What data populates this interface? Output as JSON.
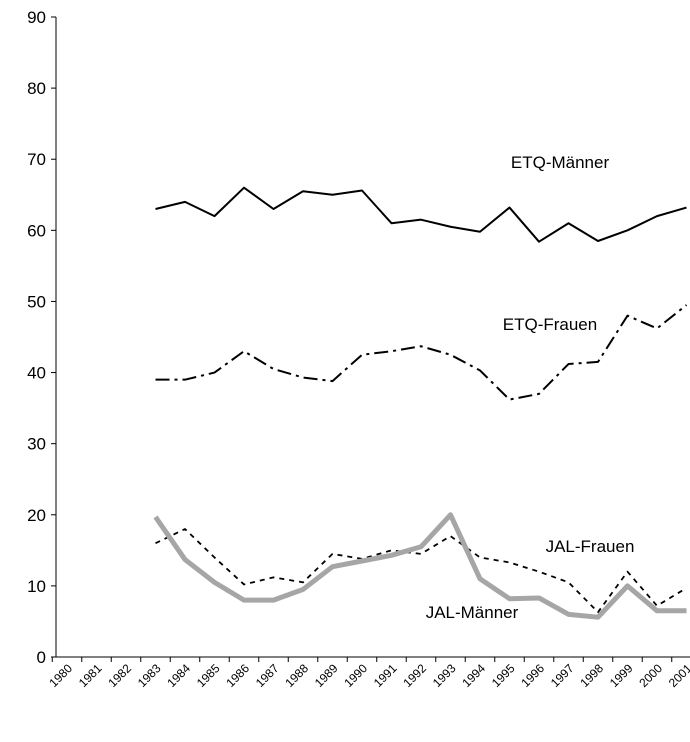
{
  "chart_data": {
    "type": "line",
    "categories": [
      "1980",
      "1981",
      "1982",
      "1983",
      "1984",
      "1985",
      "1986",
      "1987",
      "1988",
      "1989",
      "1990",
      "1991",
      "1992",
      "1993",
      "1994",
      "1995",
      "1996",
      "1997",
      "1998",
      "1999",
      "2000",
      "2001"
    ],
    "series": [
      {
        "name": "ETQ-Männer",
        "color": "#000000",
        "values": [
          null,
          null,
          null,
          63.0,
          64.0,
          62.0,
          66.0,
          63.0,
          65.5,
          65.0,
          65.6,
          61.0,
          61.5,
          60.5,
          59.8,
          63.2,
          58.4,
          61.0,
          58.5,
          60.0,
          62.0,
          63.2
        ]
      },
      {
        "name": "ETQ-Frauen",
        "color": "#000000",
        "values": [
          null,
          null,
          null,
          39.0,
          39.0,
          40.0,
          43.0,
          40.5,
          39.3,
          38.8,
          42.5,
          43.0,
          43.7,
          42.5,
          40.3,
          36.2,
          37.0,
          41.2,
          41.5,
          48.0,
          46.2,
          49.5
        ]
      },
      {
        "name": "JAL-Frauen",
        "color": "#000000",
        "values": [
          null,
          null,
          null,
          16.0,
          18.0,
          14.0,
          10.2,
          11.2,
          10.5,
          14.5,
          13.8,
          15.0,
          14.5,
          17.0,
          14.0,
          13.3,
          12.0,
          10.5,
          6.3,
          12.0,
          7.2,
          9.7
        ]
      },
      {
        "name": "JAL-Männer",
        "color": "#a6a6a6",
        "values": [
          null,
          null,
          null,
          19.7,
          13.7,
          10.5,
          8.0,
          8.0,
          9.5,
          12.7,
          13.5,
          14.3,
          15.5,
          20.0,
          11.0,
          8.2,
          8.3,
          6.0,
          5.6,
          10.0,
          6.5,
          6.5
        ]
      }
    ],
    "ylim": [
      0,
      90
    ],
    "yticks": [
      0,
      10,
      20,
      30,
      40,
      50,
      60,
      70,
      80,
      90
    ],
    "grid": false
  }
}
